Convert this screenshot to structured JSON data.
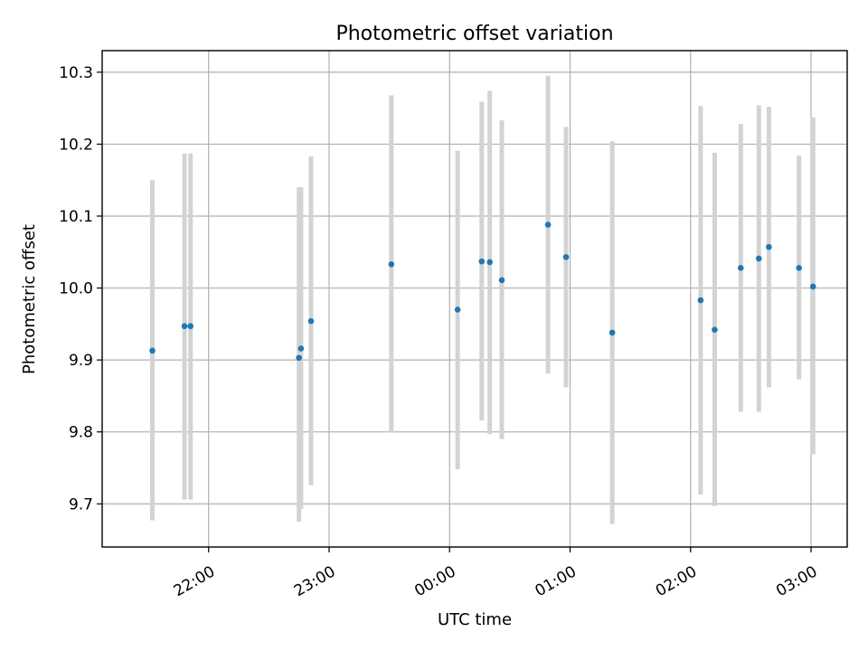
{
  "chart_data": {
    "type": "scatter",
    "title": "Photometric offset variation",
    "xlabel": "UTC time",
    "ylabel": "Photometric offset",
    "x_axis_type": "time",
    "xlim": [
      "21:07",
      "03:18"
    ],
    "ylim": [
      9.64,
      10.33
    ],
    "x_ticks": [
      "22:00",
      "23:00",
      "00:00",
      "01:00",
      "02:00",
      "03:00"
    ],
    "y_ticks": [
      "9.7",
      "9.8",
      "9.9",
      "10.0",
      "10.1",
      "10.2",
      "10.3"
    ],
    "y_tick_values": [
      9.7,
      9.8,
      9.9,
      10.0,
      10.1,
      10.2,
      10.3
    ],
    "grid": true,
    "colors": {
      "point": "#1f77b4",
      "error_bar": "#d3d3d3"
    },
    "points": [
      {
        "x": "21:32",
        "y": 9.913,
        "y_low": 9.677,
        "y_high": 10.15
      },
      {
        "x": "21:48",
        "y": 9.947,
        "y_low": 9.706,
        "y_high": 10.187
      },
      {
        "x": "21:51",
        "y": 9.947,
        "y_low": 9.706,
        "y_high": 10.187
      },
      {
        "x": "22:45",
        "y": 9.903,
        "y_low": 9.675,
        "y_high": 10.14
      },
      {
        "x": "22:46",
        "y": 9.916,
        "y_low": 9.693,
        "y_high": 10.14
      },
      {
        "x": "22:51",
        "y": 9.954,
        "y_low": 9.726,
        "y_high": 10.183
      },
      {
        "x": "23:31",
        "y": 10.033,
        "y_low": 9.799,
        "y_high": 10.268
      },
      {
        "x": "00:04",
        "y": 9.97,
        "y_low": 9.748,
        "y_high": 10.191
      },
      {
        "x": "00:16",
        "y": 10.037,
        "y_low": 9.816,
        "y_high": 10.259
      },
      {
        "x": "00:20",
        "y": 10.036,
        "y_low": 9.797,
        "y_high": 10.274
      },
      {
        "x": "00:26",
        "y": 10.011,
        "y_low": 9.79,
        "y_high": 10.233
      },
      {
        "x": "00:49",
        "y": 10.088,
        "y_low": 9.881,
        "y_high": 10.295
      },
      {
        "x": "00:58",
        "y": 10.043,
        "y_low": 9.862,
        "y_high": 10.224
      },
      {
        "x": "01:21",
        "y": 9.938,
        "y_low": 9.672,
        "y_high": 10.204
      },
      {
        "x": "02:05",
        "y": 9.983,
        "y_low": 9.713,
        "y_high": 10.253
      },
      {
        "x": "02:12",
        "y": 9.942,
        "y_low": 9.697,
        "y_high": 10.188
      },
      {
        "x": "02:25",
        "y": 10.028,
        "y_low": 9.828,
        "y_high": 10.228
      },
      {
        "x": "02:34",
        "y": 10.041,
        "y_low": 9.828,
        "y_high": 10.254
      },
      {
        "x": "02:39",
        "y": 10.057,
        "y_low": 9.862,
        "y_high": 10.252
      },
      {
        "x": "02:54",
        "y": 10.028,
        "y_low": 9.873,
        "y_high": 10.184
      },
      {
        "x": "03:01",
        "y": 10.002,
        "y_low": 9.769,
        "y_high": 10.237
      }
    ]
  }
}
